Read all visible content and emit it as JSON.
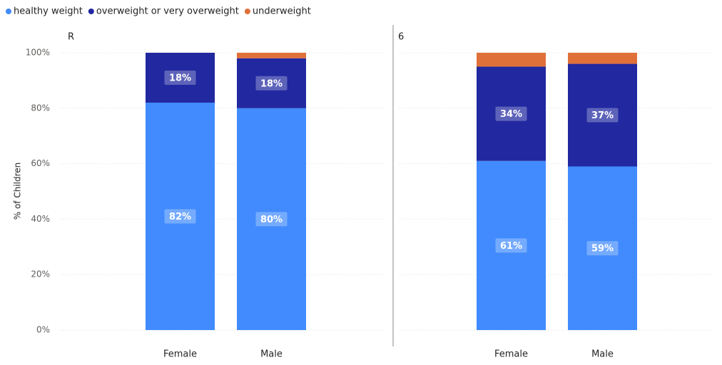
{
  "chart_data": [
    {
      "type": "bar",
      "title": "R",
      "ylabel": "% of Children",
      "categories": [
        "Female",
        "Male"
      ],
      "series": [
        {
          "name": "healthy weight",
          "color": "#418BFE",
          "values": [
            82,
            80
          ],
          "value_labels": [
            "82%",
            "80%"
          ]
        },
        {
          "name": "overweight or very overweight",
          "color": "#2128A0",
          "values": [
            18,
            18
          ],
          "value_labels": [
            "18%",
            "18%"
          ]
        },
        {
          "name": "underweight",
          "color": "#E0703A",
          "values": [
            0,
            2
          ]
        }
      ],
      "ylim": [
        0,
        100
      ],
      "yticks": [
        {
          "value": 0,
          "label": "0%"
        },
        {
          "value": 20,
          "label": "20%"
        },
        {
          "value": 40,
          "label": "40%"
        },
        {
          "value": 60,
          "label": "60%"
        },
        {
          "value": 80,
          "label": "80%"
        },
        {
          "value": 100,
          "label": "100%"
        }
      ],
      "grid": true
    },
    {
      "type": "bar",
      "title": "6",
      "categories": [
        "Female",
        "Male"
      ],
      "series": [
        {
          "color": "#418BFE",
          "values": [
            61,
            59
          ],
          "value_labels": [
            "61%",
            "59%"
          ]
        },
        {
          "color": "#2128A0",
          "values": [
            34,
            37
          ],
          "value_labels": [
            "34%",
            "37%"
          ]
        },
        {
          "color": "#E0703A",
          "values": [
            5,
            4
          ]
        }
      ],
      "ylim": [
        0,
        100
      ],
      "grid": true
    }
  ]
}
